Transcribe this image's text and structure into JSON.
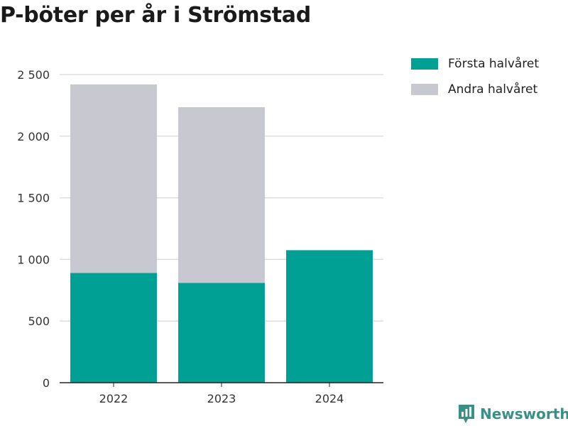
{
  "title": "P-böter per år i Strömstad",
  "brand": {
    "name": "Newsworthy",
    "color": "#3a8f86",
    "icon": "newsworthy-logo-icon"
  },
  "colors": {
    "series1": "#00a095",
    "series2": "#c8c8d0",
    "grid": "#dddddd",
    "axis": "#222222"
  },
  "chart_data": {
    "type": "bar",
    "stacked": true,
    "title": "P-böter per år i Strömstad",
    "categories": [
      "2022",
      "2023",
      "2024"
    ],
    "series": [
      {
        "name": "Första halvåret",
        "values": [
          890,
          810,
          1075
        ],
        "color": "#00a095"
      },
      {
        "name": "Andra halvåret",
        "values": [
          1530,
          1425,
          0
        ],
        "color": "#c8c8d0"
      }
    ],
    "ylim": [
      0,
      2500
    ],
    "yticks": [
      0,
      500,
      1000,
      1500,
      2000,
      2500
    ],
    "ytick_labels": [
      "0",
      "500",
      "1 000",
      "1 500",
      "2 000",
      "2 500"
    ],
    "grid": true,
    "legend_position": "top-right",
    "xlabel": "",
    "ylabel": ""
  }
}
